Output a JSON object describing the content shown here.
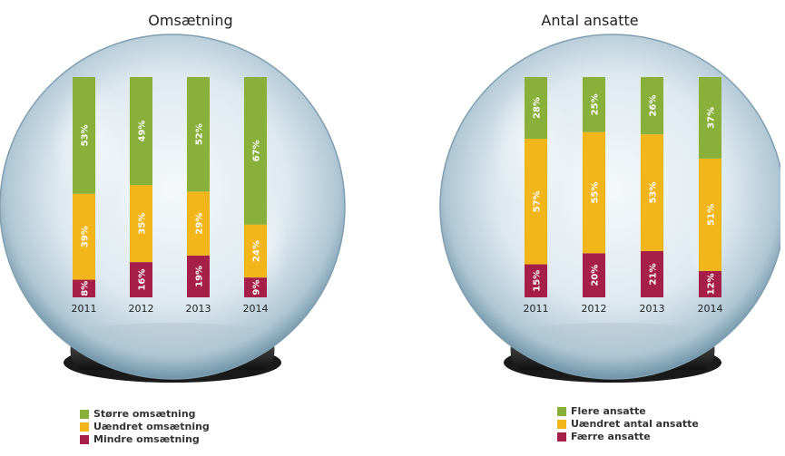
{
  "colors": {
    "green": "#8ab03c",
    "yellow": "#f2b51a",
    "red": "#a61f48"
  },
  "chart_data": [
    {
      "type": "bar",
      "stacked": true,
      "orientation": "vertical",
      "title": "Omsætning",
      "categories": [
        "2011",
        "2012",
        "2013",
        "2014"
      ],
      "series": [
        {
          "name": "Større omsætning",
          "color": "#8ab03c",
          "values": [
            53,
            49,
            52,
            67
          ],
          "labels": [
            "53%",
            "49%",
            "52%",
            "67%"
          ]
        },
        {
          "name": "Uændret omsætning",
          "color": "#f2b51a",
          "values": [
            39,
            35,
            29,
            24
          ],
          "labels": [
            "39%",
            "35%",
            "29%",
            "24%"
          ]
        },
        {
          "name": "Mindre omsætning",
          "color": "#a61f48",
          "values": [
            8,
            16,
            19,
            9
          ],
          "labels": [
            "8%",
            "16%",
            "19%",
            "9%"
          ]
        }
      ],
      "legend_position": "bottom-left"
    },
    {
      "type": "bar",
      "stacked": true,
      "orientation": "vertical",
      "title": "Antal ansatte",
      "categories": [
        "2011",
        "2012",
        "2013",
        "2014"
      ],
      "series": [
        {
          "name": "Flere ansatte",
          "color": "#8ab03c",
          "values": [
            28,
            25,
            26,
            37
          ],
          "labels": [
            "28%",
            "25%",
            "26%",
            "37%"
          ]
        },
        {
          "name": "Uændret antal ansatte",
          "color": "#f2b51a",
          "values": [
            57,
            55,
            53,
            51
          ],
          "labels": [
            "57%",
            "55%",
            "53%",
            "51%"
          ]
        },
        {
          "name": "Færre ansatte",
          "color": "#a61f48",
          "values": [
            15,
            20,
            21,
            12
          ],
          "labels": [
            "15%",
            "20%",
            "21%",
            "12%"
          ]
        }
      ],
      "legend_position": "bottom-left"
    }
  ]
}
